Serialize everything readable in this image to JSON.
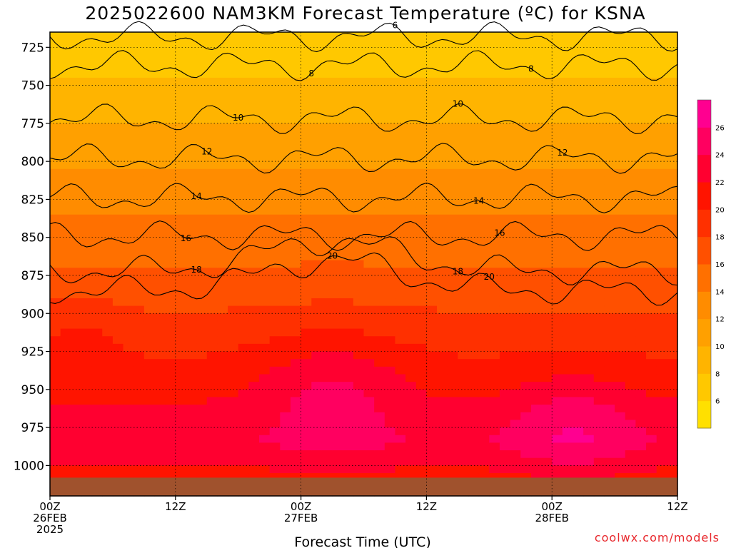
{
  "chart_data": {
    "type": "heatmap",
    "title": "2025022600 NAM3KM Forecast Temperature (ºC) for KSNA",
    "xlabel": "Forecast Time (UTC)",
    "ylabel": "",
    "x_ticks": [
      {
        "value": 0,
        "line1": "00Z",
        "line2": "26FEB",
        "line3": "2025"
      },
      {
        "value": 12,
        "line1": "12Z",
        "line2": "",
        "line3": ""
      },
      {
        "value": 24,
        "line1": "00Z",
        "line2": "27FEB",
        "line3": ""
      },
      {
        "value": 36,
        "line1": "12Z",
        "line2": "",
        "line3": ""
      },
      {
        "value": 48,
        "line1": "00Z",
        "line2": "28FEB",
        "line3": ""
      },
      {
        "value": 60,
        "line1": "12Z",
        "line2": "",
        "line3": ""
      }
    ],
    "xlim": [
      0,
      60
    ],
    "y_ticks": [
      725,
      750,
      775,
      800,
      825,
      850,
      875,
      900,
      925,
      950,
      975,
      1000
    ],
    "ylim": [
      1020,
      715
    ],
    "grid": true,
    "colorbar": {
      "ticks": [
        6,
        8,
        10,
        12,
        14,
        16,
        18,
        20,
        22,
        24,
        26
      ],
      "range": [
        4,
        28
      ],
      "colors": [
        "#ffe000",
        "#ffc800",
        "#ffb400",
        "#ffa000",
        "#ff8c00",
        "#ff7000",
        "#ff5000",
        "#ff3000",
        "#ff1400",
        "#ff0030",
        "#ff0060",
        "#ff0090"
      ]
    },
    "isotherms": [
      {
        "value": 6,
        "label": "6",
        "pressure": 718,
        "label_x": 33
      },
      {
        "value": 8,
        "label": "8",
        "pressure": 737,
        "label_x": 25,
        "label2_x": 46
      },
      {
        "value": 10,
        "label": "10",
        "pressure": 772,
        "label_x": 18,
        "label2_x": 39
      },
      {
        "value": 12,
        "label": "12",
        "pressure": 798,
        "label_x": 15,
        "label2_x": 49
      },
      {
        "value": 14,
        "label": "14",
        "pressure": 824,
        "label_x": 14,
        "label2_x": 41
      },
      {
        "value": 16,
        "label": "16",
        "pressure": 849,
        "label_x": 13,
        "label2_x": 43
      },
      {
        "value": 18,
        "label": "18",
        "pressure": 872,
        "label_x": 14,
        "label2_x": 39
      },
      {
        "value": 20,
        "label": "20",
        "pressure": 885,
        "label_x": 27,
        "label2_x": 42
      }
    ],
    "surface": {
      "color": "#a0522d",
      "pressure": 1008
    }
  },
  "credit": "coolwx.com/models"
}
